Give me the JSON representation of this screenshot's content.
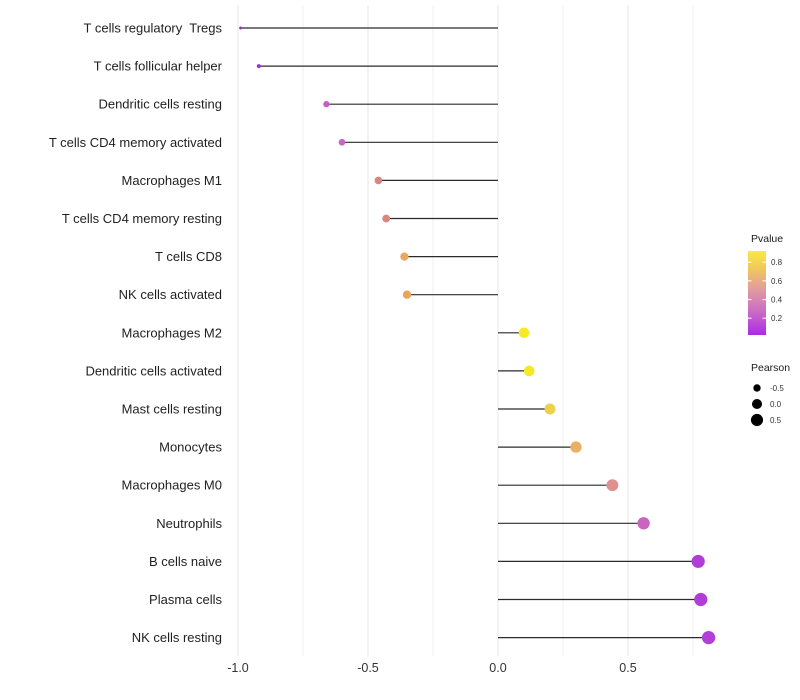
{
  "chart_data": {
    "type": "scatter",
    "variant": "lollipop",
    "title": "",
    "xlabel": "",
    "ylabel": "",
    "xlim": [
      -1.08,
      0.88
    ],
    "grid": "vertical major and minor gridlines, light gray, no horizontal gridlines",
    "x_ticks": [
      -1.0,
      -0.5,
      0.0,
      0.5
    ],
    "x_tick_labels": [
      "-1.0",
      "-0.5",
      "0.0",
      "0.5"
    ],
    "x_minor_ticks": [
      -0.75,
      -0.25,
      0.25,
      0.75
    ],
    "stem_baseline_x": 0.0,
    "points": [
      {
        "label": "T cells regulatory  Tregs",
        "pearson": -0.99,
        "color": "#9b2ce4"
      },
      {
        "label": "T cells follicular helper",
        "pearson": -0.92,
        "color": "#a42be2"
      },
      {
        "label": "Dendritic cells resting",
        "pearson": -0.66,
        "color": "#c45fc7"
      },
      {
        "label": "T cells CD4 memory activated",
        "pearson": -0.6,
        "color": "#c768c2"
      },
      {
        "label": "Macrophages M1",
        "pearson": -0.46,
        "color": "#db8282"
      },
      {
        "label": "T cells CD4 memory resting",
        "pearson": -0.43,
        "color": "#dc8383"
      },
      {
        "label": "T cells CD8",
        "pearson": -0.36,
        "color": "#eaa75f"
      },
      {
        "label": "NK cells activated",
        "pearson": -0.35,
        "color": "#e9a65b"
      },
      {
        "label": "Macrophages M2",
        "pearson": 0.1,
        "color": "#f6e926"
      },
      {
        "label": "Dendritic cells activated",
        "pearson": 0.12,
        "color": "#f5e827"
      },
      {
        "label": "Mast cells resting",
        "pearson": 0.2,
        "color": "#efd04d"
      },
      {
        "label": "Monocytes",
        "pearson": 0.3,
        "color": "#eab164"
      },
      {
        "label": "Macrophages M0",
        "pearson": 0.44,
        "color": "#e19090"
      },
      {
        "label": "Neutrophils",
        "pearson": 0.56,
        "color": "#cb64c0"
      },
      {
        "label": "B cells naive",
        "pearson": 0.77,
        "color": "#b13ed4"
      },
      {
        "label": "Plasma cells",
        "pearson": 0.78,
        "color": "#b13ed4"
      },
      {
        "label": "NK cells resting",
        "pearson": 0.81,
        "color": "#b340d6"
      }
    ],
    "legend": {
      "position": "right",
      "pvalue": {
        "title": "Pvalue",
        "tick_values": [
          0.8,
          0.6,
          0.4,
          0.2
        ],
        "tick_labels": [
          "0.8",
          "0.6",
          "0.4",
          "0.2"
        ],
        "bar_domain": [
          0.02,
          0.92
        ],
        "gradient_low_color": "#ab2ae8",
        "gradient_high_color": "#f9ea41",
        "gradient_stops_bottom_to_top": [
          "#ab2ae8",
          "#cb6cc4",
          "#e29d9d",
          "#f0c95b",
          "#f9ea41"
        ]
      },
      "pearson": {
        "title": "Pearson",
        "size_values": [
          -0.5,
          0.0,
          0.5
        ],
        "labels": [
          "-0.5",
          "0.0",
          "0.5"
        ],
        "dot_color": "#000000"
      }
    },
    "colors": {
      "stem": "#2b2b2b",
      "grid_major": "#e7e7e7",
      "grid_minor": "#f2f2f2",
      "background": "#ffffff"
    }
  }
}
